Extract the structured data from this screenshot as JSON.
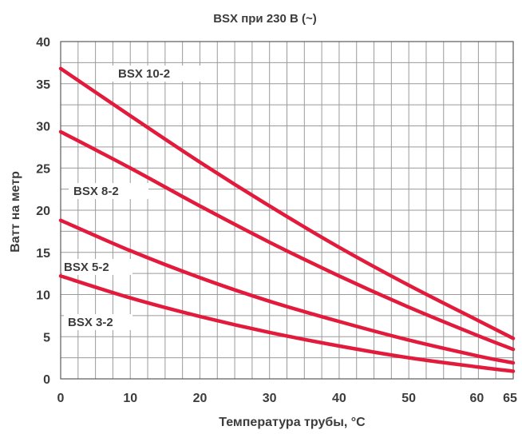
{
  "chart_data": {
    "type": "line",
    "title": "BSX при 230 В (~)",
    "xlabel": "Температура трубы, °C",
    "ylabel": "Ватт на метр",
    "xlim": [
      0,
      65
    ],
    "ylim": [
      0,
      40
    ],
    "x_ticks": [
      0,
      10,
      20,
      30,
      40,
      50,
      60,
      65
    ],
    "y_ticks": [
      0,
      5,
      10,
      15,
      20,
      25,
      30,
      35,
      40
    ],
    "x_tick_labels": [
      "0",
      "10",
      "20",
      "30",
      "40",
      "50",
      "60",
      "65"
    ],
    "y_tick_labels": [
      "0",
      "5",
      "10",
      "15",
      "20",
      "25",
      "30",
      "35",
      "40"
    ],
    "x_grid_step": 2.5,
    "y_grid_step": 2.5,
    "grid": true,
    "line_color": "#e21b3c",
    "series": [
      {
        "name": "BSX 10-2",
        "x": [
          0,
          10,
          20,
          30,
          40,
          50,
          60,
          65
        ],
        "y": [
          36.8,
          31.2,
          25.7,
          20.5,
          15.6,
          11.1,
          6.9,
          4.8
        ]
      },
      {
        "name": "BSX 8-2",
        "x": [
          0,
          10,
          20,
          30,
          40,
          50,
          60,
          65
        ],
        "y": [
          29.3,
          25.0,
          20.5,
          16.2,
          12.2,
          8.5,
          5.1,
          3.5
        ]
      },
      {
        "name": "BSX 5-2",
        "x": [
          0,
          10,
          20,
          30,
          40,
          50,
          60,
          65
        ],
        "y": [
          18.8,
          15.2,
          12.0,
          9.2,
          6.8,
          4.6,
          2.7,
          1.9
        ]
      },
      {
        "name": "BSX 3-2",
        "x": [
          0,
          10,
          20,
          30,
          40,
          50,
          60,
          65
        ],
        "y": [
          12.2,
          9.6,
          7.4,
          5.5,
          3.9,
          2.5,
          1.4,
          0.9
        ]
      }
    ]
  }
}
